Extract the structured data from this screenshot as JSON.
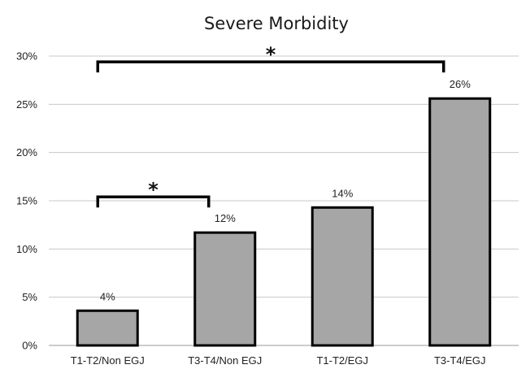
{
  "chart_data": {
    "type": "bar",
    "title": "Severe Morbidity",
    "categories": [
      "T1-T2/Non EGJ",
      "T3-T4/Non EGJ",
      "T1-T2/EGJ",
      "T3-T4/EGJ"
    ],
    "values": [
      3.6,
      11.7,
      14.3,
      25.6
    ],
    "data_labels": [
      "4%",
      "12%",
      "14%",
      "26%"
    ],
    "yticks": [
      0,
      5,
      10,
      15,
      20,
      25,
      30
    ],
    "ytick_labels": [
      "0%",
      "5%",
      "10%",
      "15%",
      "20%",
      "25%",
      "30%"
    ],
    "ylim": [
      0,
      30
    ],
    "grid": true,
    "xlabel": "",
    "ylabel": "",
    "bar_color": "#a6a6a6",
    "bar_edge_color": "#000000",
    "significance": [
      {
        "from": 0,
        "to": 1,
        "level": 15.4,
        "label": "*"
      },
      {
        "from": 0,
        "to": 3,
        "level": 29.4,
        "label": "*"
      }
    ]
  }
}
